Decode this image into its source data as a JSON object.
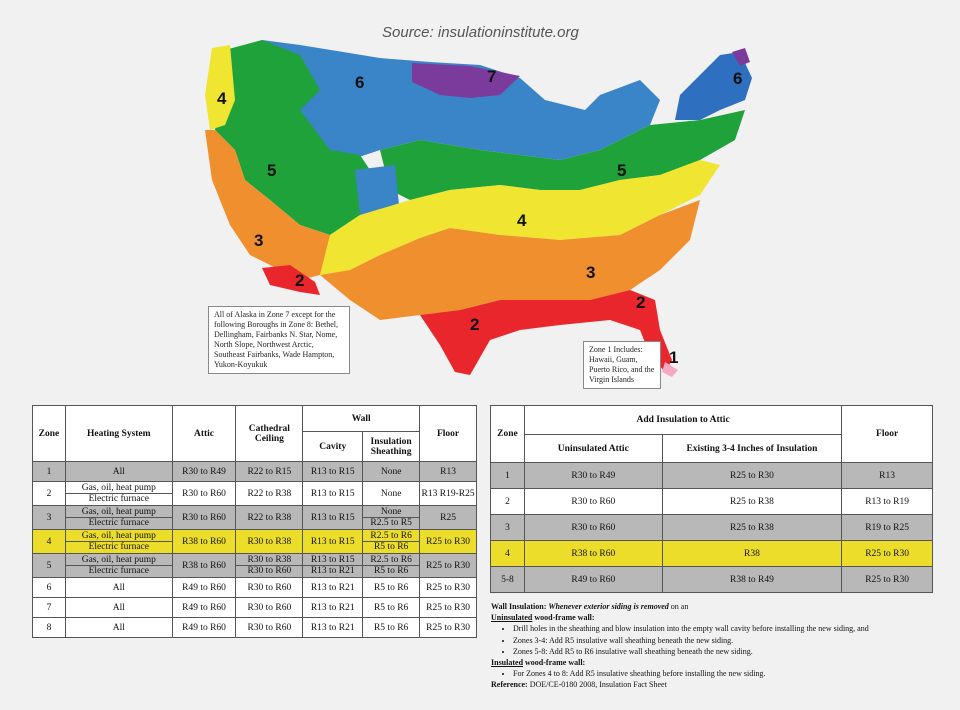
{
  "source": "Source: insulationinstitute.org",
  "map": {
    "legend_colors": {
      "1": "#f6a7c3",
      "2": "#e8262b",
      "3": "#ef8f2d",
      "4": "#f0e530",
      "5": "#1fa23a",
      "6": "#3a84c8",
      "7": "#7b3b9c"
    },
    "zone_labels": [
      "4",
      "6",
      "7",
      "6",
      "5",
      "5",
      "4",
      "3",
      "2",
      "3",
      "2",
      "2",
      "1"
    ],
    "alaska_note": "All of Alaska in Zone 7 except for the following Boroughs in Zone 8: Bethel, Dellingham, Fairbanks N. Star, Nome, North Slope, Northwest Arctic, Southeast Fairbanks, Wade Hampton, Yukon-Koyukuk",
    "zone1_note": "Zone 1 Includes: Hawaii, Guam, Puerto Rico, and the Virgin Islands"
  },
  "table1": {
    "headers": {
      "zone": "Zone",
      "heating": "Heating System",
      "attic": "Attic",
      "cathedral": "Cathedral Ceiling",
      "wall": "Wall",
      "cavity": "Cavity",
      "sheathing": "Insulation Sheathing",
      "floor": "Floor"
    },
    "rows": [
      {
        "zone": "1",
        "heating": [
          "All"
        ],
        "attic": "R30 to R49",
        "cathedral": [
          "R22 to R15"
        ],
        "cavity": [
          "R13 to R15"
        ],
        "sheathing": [
          "None"
        ],
        "floor": "R13"
      },
      {
        "zone": "2",
        "heating": [
          "Gas, oil, heat pump",
          "Electric furnace"
        ],
        "attic": "R30 to R60",
        "cathedral": [
          "R22 to R38"
        ],
        "cavity": [
          "R13 to R15"
        ],
        "sheathing": [
          "None"
        ],
        "floor": "R13 R19-R25"
      },
      {
        "zone": "3",
        "heating": [
          "Gas, oil, heat pump",
          "Electric furnace"
        ],
        "attic": "R30 to R60",
        "cathedral": [
          "R22 to R38"
        ],
        "cavity": [
          "R13 to R15"
        ],
        "sheathing": [
          "None",
          "R2.5 to R5"
        ],
        "floor": "R25"
      },
      {
        "zone": "4",
        "heating": [
          "Gas, oil, heat pump",
          "Electric furnace"
        ],
        "attic": "R38 to R60",
        "cathedral": [
          "R30 to R38"
        ],
        "cavity": [
          "R13 to R15"
        ],
        "sheathing": [
          "R2.5 to R6",
          "R5 to R6"
        ],
        "floor": "R25 to R30"
      },
      {
        "zone": "5",
        "heating": [
          "Gas, oil, heat pump",
          "Electric furnace"
        ],
        "attic": "R38 to R60",
        "cathedral": [
          "R30 to R38",
          "R30 to R60"
        ],
        "cavity": [
          "R13 to R15",
          "R13 to R21"
        ],
        "sheathing": [
          "R2.5 to R6",
          "R5 to R6"
        ],
        "floor": "R25 to R30"
      },
      {
        "zone": "6",
        "heating": [
          "All"
        ],
        "attic": "R49 to R60",
        "cathedral": [
          "R30 to R60"
        ],
        "cavity": [
          "R13 to R21"
        ],
        "sheathing": [
          "R5 to R6"
        ],
        "floor": "R25 to R30"
      },
      {
        "zone": "7",
        "heating": [
          "All"
        ],
        "attic": "R49 to R60",
        "cathedral": [
          "R30 to R60"
        ],
        "cavity": [
          "R13 to R21"
        ],
        "sheathing": [
          "R5 to R6"
        ],
        "floor": "R25 to R30"
      },
      {
        "zone": "8",
        "heating": [
          "All"
        ],
        "attic": "R49 to R60",
        "cathedral": [
          "R30 to R60"
        ],
        "cavity": [
          "R13 to R21"
        ],
        "sheathing": [
          "R5 to R6"
        ],
        "floor": "R25 to R30"
      }
    ]
  },
  "table2": {
    "headers": {
      "zone": "Zone",
      "add": "Add Insulation to Attic",
      "uninsulated": "Uninsulated Attic",
      "existing": "Existing 3-4 Inches of Insulation",
      "floor": "Floor"
    },
    "rows": [
      {
        "zone": "1",
        "uninsulated": "R30 to R49",
        "existing": "R25 to R30",
        "floor": "R13"
      },
      {
        "zone": "2",
        "uninsulated": "R30 to R60",
        "existing": "R25 to R38",
        "floor": "R13 to R19"
      },
      {
        "zone": "3",
        "uninsulated": "R30 to R60",
        "existing": "R25 to R38",
        "floor": "R19 to R25"
      },
      {
        "zone": "4",
        "uninsulated": "R38 to R60",
        "existing": "R38",
        "floor": "R25 to R30"
      },
      {
        "zone": "5-8",
        "uninsulated": "R49 to R60",
        "existing": "R38 to R49",
        "floor": "R25 to R30"
      }
    ]
  },
  "notes": {
    "wall_title": "Wall Insulation:",
    "wall_em": "Whenever exterior siding is removed",
    "wall_rest": "on an",
    "uninsulated_u": "Uninsulated",
    "uninsulated_rest": "wood-frame wall:",
    "b1": "Drill holes in the sheathing and blow insulation into the empty wall cavity before installing the new siding, and",
    "b2": "Zones 3-4: Add R5 insulative wall sheathing beneath the new siding.",
    "b3": "Zones 5-8: Add R5 to R6 insulative wall sheathing beneath the new siding.",
    "insulated_u": "Insulated",
    "insulated_rest": "wood-frame wall:",
    "b4": "For Zones 4 to 8: Add R5 insulative sheathing before installing the new siding.",
    "ref_label": "Reference:",
    "ref": "DOE/CE-0180 2008, Insulation Fact Sheet"
  }
}
